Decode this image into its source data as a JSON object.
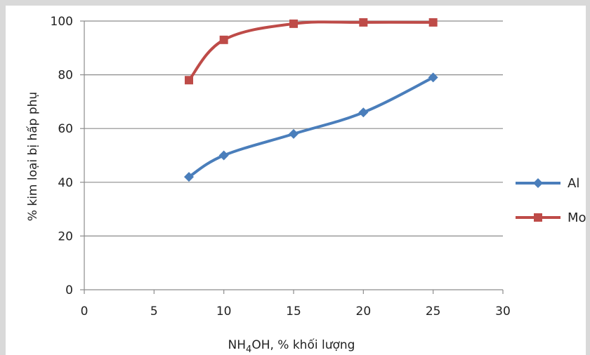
{
  "chart_data": {
    "type": "line",
    "title": "",
    "xlabel_main": "NH",
    "xlabel_sub": "4",
    "xlabel_rest": "OH, % khối lượng",
    "ylabel": "% kim loại bị hấp phụ",
    "xlim": [
      0,
      30
    ],
    "ylim": [
      0,
      100
    ],
    "xticks": [
      0,
      5,
      10,
      15,
      20,
      25,
      30
    ],
    "yticks": [
      0,
      20,
      40,
      60,
      80,
      100
    ],
    "grid": "horizontal",
    "legend_position": "right",
    "series": [
      {
        "name": "Al",
        "color": "#4a7ebb",
        "marker": "diamond",
        "x": [
          7.5,
          10,
          15,
          20,
          25
        ],
        "y": [
          42,
          50,
          58,
          66,
          79
        ]
      },
      {
        "name": "Mo",
        "color": "#be4b48",
        "marker": "square",
        "x": [
          7.5,
          10,
          15,
          20,
          25
        ],
        "y": [
          78,
          93,
          99,
          99.5,
          99.5
        ]
      }
    ]
  }
}
